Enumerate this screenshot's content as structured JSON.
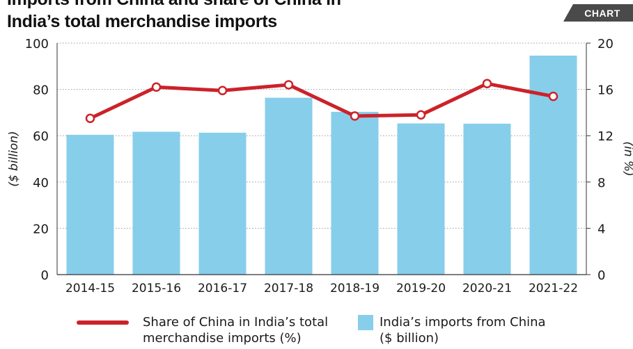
{
  "header": {
    "title_line1": "Imports from China and share of China in",
    "title_line2": "India’s total merchandise imports",
    "badge": "CHART"
  },
  "chart_data": {
    "type": "bar",
    "categories": [
      "2014-15",
      "2015-16",
      "2016-17",
      "2017-18",
      "2018-19",
      "2019-20",
      "2020-21",
      "2021-22"
    ],
    "series": [
      {
        "name": "India’s imports from China ($ billion)",
        "type": "bar",
        "axis": "left",
        "color": "#87ceeb",
        "values": [
          60.4,
          61.7,
          61.3,
          76.4,
          70.3,
          65.3,
          65.2,
          94.6
        ]
      },
      {
        "name": "Share of China in India’s total merchandise imports (%)",
        "type": "line",
        "axis": "right",
        "color": "#cc2229",
        "values": [
          13.5,
          16.2,
          15.9,
          16.4,
          13.7,
          13.8,
          16.5,
          15.4
        ]
      }
    ],
    "y_left": {
      "label": "($ billion)",
      "ylim": [
        0,
        100
      ],
      "ticks": [
        0,
        20,
        40,
        60,
        80,
        100
      ]
    },
    "y_right": {
      "label": "(in %)",
      "ylim": [
        0,
        20
      ],
      "ticks": [
        0,
        4,
        8,
        12,
        16,
        20
      ]
    },
    "grid": true,
    "legend_position": "bottom"
  },
  "legend": {
    "line_label_1": "Share of China in India’s total",
    "line_label_2": "merchandise imports (%)",
    "bar_label_1": "India’s imports from China",
    "bar_label_2": "($ billion)"
  }
}
